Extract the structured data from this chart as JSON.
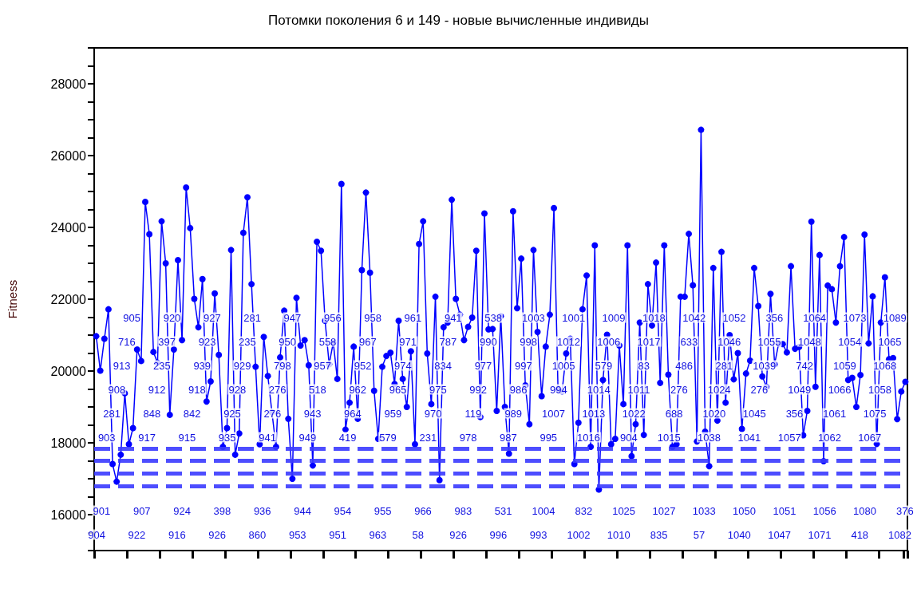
{
  "chart_data": {
    "type": "line",
    "title": "Потомки поколения 6 и 149 - новые вычисленные индивиды",
    "ylabel": "Fitness",
    "marker": "circle",
    "tick_labels": "y",
    "categories": [
      null,
      null,
      null,
      null,
      null,
      null,
      null,
      null,
      null,
      null,
      null,
      null,
      null,
      null,
      null,
      null,
      null,
      null,
      null,
      null,
      null,
      null,
      null,
      null,
      null,
      null,
      null,
      null,
      null,
      null,
      null,
      null,
      null,
      null,
      null,
      null,
      null,
      null,
      null,
      null,
      null,
      null,
      null,
      null,
      null,
      null,
      null,
      null,
      null,
      null,
      null,
      null,
      null,
      null,
      null,
      null,
      null,
      null,
      null,
      null,
      null,
      null,
      null,
      null,
      null,
      null,
      null,
      null,
      null,
      null,
      null,
      null,
      null,
      null,
      null,
      null,
      null,
      null,
      null,
      null,
      null,
      null,
      null,
      null,
      null,
      null,
      null,
      null,
      null,
      null,
      null,
      null,
      null,
      null,
      null,
      null,
      null,
      null,
      null,
      null,
      null,
      null,
      null,
      null,
      null,
      null,
      null,
      null,
      null,
      null,
      null,
      null,
      null,
      null,
      null,
      null,
      null,
      null,
      null,
      null,
      null,
      null,
      null,
      null,
      null,
      null,
      null,
      null,
      null,
      null,
      null,
      null,
      null,
      null,
      null,
      null,
      null,
      null,
      null,
      null,
      null,
      null,
      null,
      null,
      null,
      null,
      null,
      null,
      null,
      null,
      null,
      null,
      null,
      null,
      null,
      null,
      null,
      null,
      null,
      null,
      null,
      null,
      null,
      null,
      null,
      null,
      null,
      null,
      null,
      null,
      null,
      null,
      null,
      null,
      null,
      null,
      null,
      null,
      null,
      null,
      null,
      null,
      null,
      null,
      null,
      null,
      null,
      null,
      null,
      null,
      null,
      null,
      null,
      null,
      null,
      null,
      null,
      null,
      null
    ],
    "ylim": [
      15000,
      29000
    ],
    "yticks": [
      {
        "value": 15000,
        "label": null
      },
      {
        "value": 15500,
        "label": null
      },
      16000,
      {
        "value": 16500,
        "label": null
      },
      {
        "value": 17000,
        "label": null
      },
      {
        "value": 17500,
        "label": null
      },
      18000,
      {
        "value": 18500,
        "label": null
      },
      {
        "value": 19000,
        "label": null
      },
      {
        "value": 19500,
        "label": null
      },
      20000,
      {
        "value": 20500,
        "label": null
      },
      {
        "value": 21000,
        "label": null
      },
      {
        "value": 21500,
        "label": null
      },
      22000,
      {
        "value": 22500,
        "label": null
      },
      {
        "value": 23000,
        "label": null
      },
      {
        "value": 23500,
        "label": null
      },
      24000,
      {
        "value": 24500,
        "label": null
      },
      {
        "value": 25000,
        "label": null
      },
      {
        "value": 25500,
        "label": null
      },
      26000,
      {
        "value": 26500,
        "label": null
      },
      {
        "value": 27000,
        "label": null
      },
      {
        "value": 27500,
        "label": null
      },
      28000,
      {
        "value": 28500,
        "label": null
      },
      {
        "value": 29000,
        "label": null
      }
    ],
    "ref_lines": [
      {
        "axis": "y",
        "value": 17850,
        "color": "#3a3aff",
        "line_style": "dashed"
      },
      {
        "axis": "y",
        "value": 17500,
        "color": "#3a3aff",
        "line_style": "dashed"
      },
      {
        "axis": "y",
        "value": 17150,
        "color": "#3a3aff",
        "line_style": "dashed"
      },
      {
        "axis": "y",
        "value": 16800,
        "color": "#3a3aff",
        "line_style": "dashed"
      }
    ],
    "series": [
      {
        "color": "#0000ff",
        "values": [
          20970,
          20010,
          20900,
          21720,
          17410,
          16920,
          17670,
          19380,
          17960,
          18410,
          20600,
          20280,
          24710,
          23810,
          20530,
          20230,
          24170,
          23000,
          18780,
          20600,
          23090,
          20860,
          25110,
          23980,
          22010,
          21220,
          22560,
          19150,
          19710,
          22160,
          20450,
          17890,
          18410,
          23370,
          17670,
          18260,
          23850,
          24840,
          22420,
          20120,
          17960,
          20950,
          19860,
          18850,
          17890,
          20380,
          21680,
          18670,
          17000,
          22040,
          20710,
          20860,
          20160,
          17370,
          23600,
          23350,
          21400,
          20190,
          20790,
          19780,
          25210,
          18370,
          19120,
          20680,
          18670,
          22810,
          24970,
          22740,
          19450,
          18110,
          20120,
          20420,
          20510,
          19640,
          21400,
          19780,
          19000,
          20550,
          17960,
          23540,
          24170,
          20490,
          19080,
          22070,
          16960,
          21220,
          21350,
          24770,
          22010,
          21570,
          20860,
          21230,
          21490,
          23350,
          18720,
          24390,
          21160,
          21170,
          18890,
          21530,
          19000,
          17700,
          24450,
          21750,
          23130,
          19600,
          18520,
          23370,
          21090,
          19300,
          20680,
          21570,
          24540,
          19490,
          19430,
          20490,
          20900,
          17410,
          18560,
          21720,
          22660,
          17890,
          23500,
          16700,
          19750,
          21010,
          17960,
          18110,
          20710,
          19080,
          23500,
          17630,
          18520,
          21350,
          18220,
          22420,
          21270,
          23020,
          19670,
          23500,
          19900,
          17890,
          17960,
          22070,
          22070,
          23820,
          22390,
          18040,
          26720,
          18310,
          17350,
          22870,
          18620,
          23320,
          19120,
          21000,
          19770,
          20500,
          18390,
          19930,
          20290,
          22870,
          21810,
          19850,
          19560,
          22150,
          20190,
          20770,
          20750,
          20520,
          22920,
          20620,
          20670,
          18210,
          18890,
          24160,
          19560,
          23230,
          17490,
          22380,
          22280,
          21350,
          22920,
          23730,
          19750,
          19810,
          19000,
          19890,
          23800,
          20770,
          22080,
          17970,
          21350,
          22610,
          20330,
          20360,
          18660,
          19430,
          19700
        ],
        "name": null
      }
    ],
    "annotations": [
      "904",
      "901",
      "903",
      "281",
      "908",
      "913",
      "716",
      "905",
      "922",
      "907",
      "917",
      "848",
      "912",
      "235",
      "397",
      "920",
      "916",
      "924",
      "915",
      "842",
      "918",
      "939",
      "923",
      "927",
      "926",
      "398",
      "935",
      "925",
      "928",
      "929",
      "235",
      "281",
      "860",
      "936",
      "941",
      "276",
      "276",
      "798",
      "950",
      "947",
      "953",
      "944",
      "949",
      "943",
      "518",
      "957",
      "558",
      "956",
      "951",
      "954",
      "419",
      "964",
      "962",
      "952",
      "967",
      "958",
      "963",
      "955",
      "579",
      "959",
      "965",
      "974",
      "971",
      "961",
      "58",
      "966",
      "231",
      "970",
      "975",
      "834",
      "787",
      "941",
      "926",
      "983",
      "978",
      "119",
      "992",
      "977",
      "990",
      "538",
      "996",
      "531",
      "987",
      "989",
      "986",
      "997",
      "998",
      "1003",
      "993",
      "1004",
      "995",
      "1007",
      "994",
      "1005",
      "1012",
      "1001",
      "1002",
      "832",
      "1016",
      "1013",
      "1014",
      "579",
      "1006",
      "1009",
      "1010",
      "1025",
      "904",
      "1022",
      "1011",
      "83",
      "1017",
      "1018",
      "835",
      "1027",
      "1015",
      "688",
      "276",
      "486",
      "633",
      "1042",
      "57",
      "1033",
      "1038",
      "1020",
      "1024",
      "281",
      "1046",
      "1052",
      "1040",
      "1050",
      "1041",
      "1045",
      "276",
      "1039",
      "1055",
      "356",
      "1047",
      "1051",
      "1057",
      "356",
      "1049",
      "742",
      "1048",
      "1064",
      "1071",
      "1056",
      "1062",
      "1061",
      "1066",
      "1059",
      "1054",
      "1073",
      "418",
      "1080",
      "1067",
      "1075",
      "1058",
      "1068",
      "1065",
      "1089",
      "1082",
      "376"
    ]
  }
}
